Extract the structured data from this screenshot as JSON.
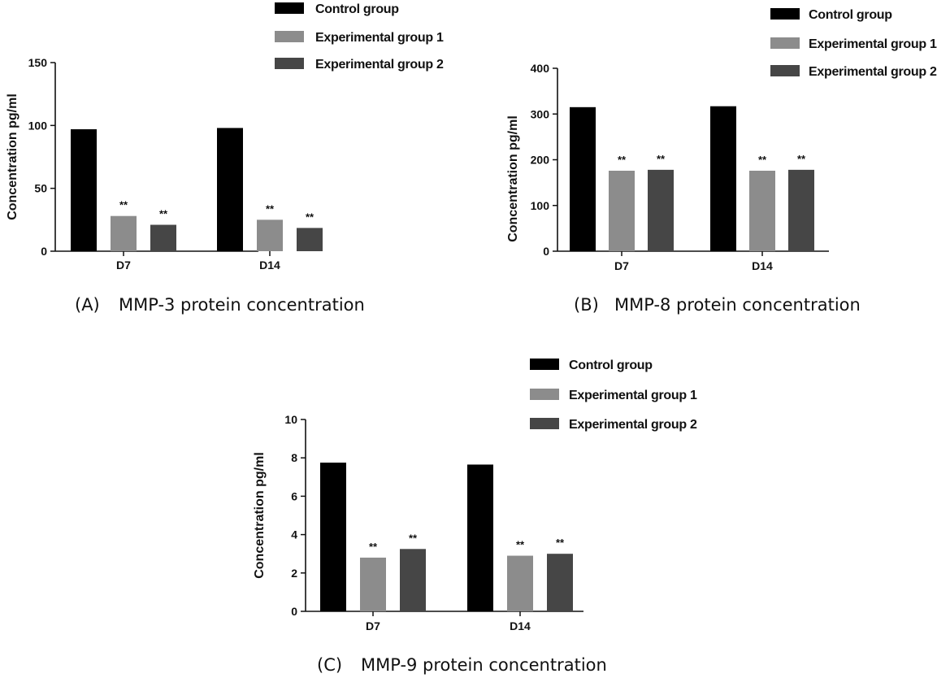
{
  "chart_data": [
    {
      "type": "bar",
      "caption_label": "(A)",
      "caption_text": "MMP-3 protein concentration",
      "ylabel": "Concentration pg/ml",
      "categories": [
        "D7",
        "D14"
      ],
      "ylim": [
        0,
        150
      ],
      "yticks": [
        "0",
        "50",
        "100",
        "150"
      ],
      "significance": [
        [
          "",
          "**",
          "**"
        ],
        [
          "",
          "**",
          "**"
        ]
      ],
      "series": [
        {
          "name": "Control group",
          "color": "#000000",
          "values": [
            97,
            98
          ]
        },
        {
          "name": "Experimental group 1",
          "color": "#8c8c8c",
          "values": [
            28,
            25
          ]
        },
        {
          "name": "Experimental group 2",
          "color": "#464646",
          "values": [
            21,
            18.5
          ]
        }
      ]
    },
    {
      "type": "bar",
      "caption_label": "(B)",
      "caption_text": "MMP-8 protein concentration",
      "ylabel": "Concentration pg/ml",
      "categories": [
        "D7",
        "D14"
      ],
      "ylim": [
        0,
        400
      ],
      "yticks": [
        "0",
        "100",
        "200",
        "300",
        "400"
      ],
      "significance": [
        [
          "",
          "**",
          "**"
        ],
        [
          "",
          "**",
          "**"
        ]
      ],
      "series": [
        {
          "name": "Control group",
          "color": "#000000",
          "values": [
            315,
            317
          ]
        },
        {
          "name": "Experimental group 1",
          "color": "#8c8c8c",
          "values": [
            176,
            176
          ]
        },
        {
          "name": "Experimental group 2",
          "color": "#464646",
          "values": [
            178,
            178
          ]
        }
      ]
    },
    {
      "type": "bar",
      "caption_label": "(C)",
      "caption_text": "MMP-9 protein concentration",
      "ylabel": "Concentration pg/ml",
      "categories": [
        "D7",
        "D14"
      ],
      "ylim": [
        0,
        10
      ],
      "yticks": [
        "0",
        "2",
        "4",
        "6",
        "8",
        "10"
      ],
      "significance": [
        [
          "",
          "**",
          "**"
        ],
        [
          "",
          "**",
          "**"
        ]
      ],
      "series": [
        {
          "name": "Control group",
          "color": "#000000",
          "values": [
            7.75,
            7.65
          ]
        },
        {
          "name": "Experimental group 1",
          "color": "#8c8c8c",
          "values": [
            2.8,
            2.9
          ]
        },
        {
          "name": "Experimental group 2",
          "color": "#464646",
          "values": [
            3.25,
            3.0
          ]
        }
      ]
    }
  ]
}
